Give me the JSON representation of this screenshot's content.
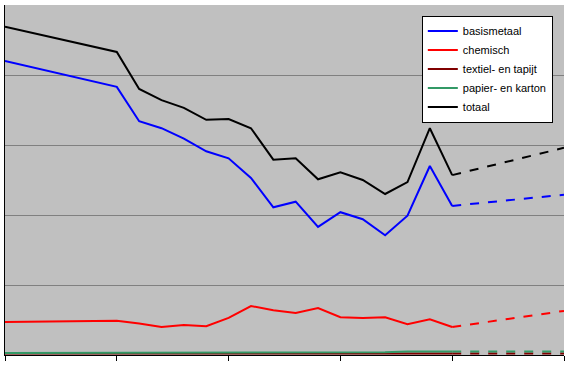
{
  "chart_data": {
    "type": "line",
    "x": [
      0,
      5,
      6,
      7,
      8,
      9,
      10,
      11,
      12,
      13,
      14,
      15,
      16,
      17,
      18,
      19,
      20,
      25
    ],
    "series": [
      {
        "name": "basismetaal",
        "color": "#0000ff",
        "line_style": "solid",
        "values": [
          4.2,
          3.83,
          3.34,
          3.24,
          3.09,
          2.91,
          2.81,
          2.53,
          2.11,
          2.19,
          1.83,
          2.04,
          1.94,
          1.71,
          1.99,
          2.7,
          2.13,
          null
        ]
      },
      {
        "name": "chemisch",
        "color": "#ff0000",
        "line_style": "solid",
        "values": [
          0.47,
          0.49,
          0.45,
          0.4,
          0.43,
          0.41,
          0.53,
          0.7,
          0.64,
          0.6,
          0.67,
          0.54,
          0.53,
          0.54,
          0.44,
          0.51,
          0.4,
          null
        ]
      },
      {
        "name": "textiel- en tapijt",
        "color": "#800000",
        "line_style": "solid",
        "values": [
          0.02,
          0.02,
          0.02,
          0.02,
          0.02,
          0.02,
          0.02,
          0.02,
          0.02,
          0.02,
          0.02,
          0.02,
          0.02,
          0.02,
          0.02,
          0.02,
          0.02,
          null
        ]
      },
      {
        "name": "papier- en karton",
        "color": "#339966",
        "line_style": "solid",
        "values": [
          0.03,
          0.03,
          0.03,
          0.03,
          0.03,
          0.03,
          0.03,
          0.03,
          0.03,
          0.03,
          0.03,
          0.03,
          0.03,
          0.04,
          0.05,
          0.05,
          0.05,
          null
        ]
      },
      {
        "name": "totaal",
        "color": "#000000",
        "line_style": "solid",
        "values": [
          4.69,
          4.33,
          3.8,
          3.64,
          3.53,
          3.36,
          3.37,
          3.24,
          2.79,
          2.81,
          2.51,
          2.61,
          2.5,
          2.3,
          2.47,
          3.24,
          2.57,
          null
        ]
      },
      {
        "name": "basismetaal",
        "color": "#0000ff",
        "line_style": "dashed",
        "values": [
          null,
          null,
          null,
          null,
          null,
          null,
          null,
          null,
          null,
          null,
          null,
          null,
          null,
          null,
          null,
          null,
          2.13,
          2.29
        ]
      },
      {
        "name": "chemisch",
        "color": "#ff0000",
        "line_style": "dashed",
        "values": [
          null,
          null,
          null,
          null,
          null,
          null,
          null,
          null,
          null,
          null,
          null,
          null,
          null,
          null,
          null,
          null,
          0.4,
          0.63
        ]
      },
      {
        "name": "textiel- en tapijt",
        "color": "#800000",
        "line_style": "dashed",
        "values": [
          null,
          null,
          null,
          null,
          null,
          null,
          null,
          null,
          null,
          null,
          null,
          null,
          null,
          null,
          null,
          null,
          0.02,
          0.02
        ]
      },
      {
        "name": "papier- en karton",
        "color": "#339966",
        "line_style": "dashed",
        "values": [
          null,
          null,
          null,
          null,
          null,
          null,
          null,
          null,
          null,
          null,
          null,
          null,
          null,
          null,
          null,
          null,
          0.05,
          0.05
        ]
      },
      {
        "name": "totaal",
        "color": "#000000",
        "line_style": "dashed",
        "values": [
          null,
          null,
          null,
          null,
          null,
          null,
          null,
          null,
          null,
          null,
          null,
          null,
          null,
          null,
          null,
          null,
          2.57,
          2.96
        ]
      }
    ],
    "xlim": [
      0,
      25
    ],
    "xticks": [
      0,
      5,
      10,
      15,
      20,
      25
    ],
    "ylim": [
      0,
      5
    ],
    "yticks": [
      0,
      1,
      2,
      3,
      4,
      5
    ],
    "grid": true,
    "legend": "upper right",
    "tick_labels": false
  }
}
